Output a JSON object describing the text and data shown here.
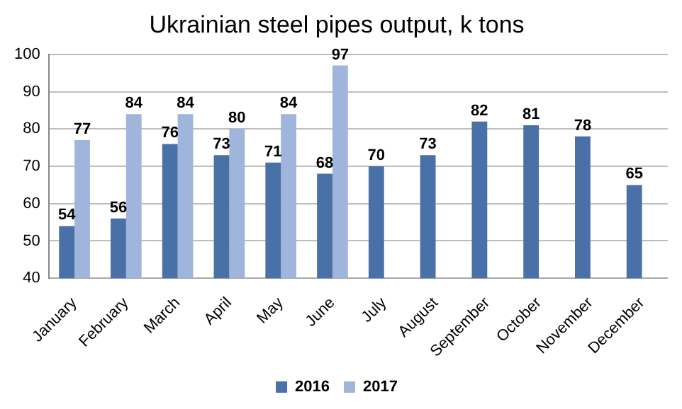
{
  "chart_data": {
    "type": "bar",
    "title": "Ukrainian steel pipes output, k tons",
    "categories": [
      "January",
      "February",
      "March",
      "April",
      "May",
      "June",
      "July",
      "August",
      "September",
      "October",
      "November",
      "December"
    ],
    "series": [
      {
        "name": "2016",
        "color": "#4a70a8",
        "values": [
          54,
          56,
          76,
          73,
          71,
          68,
          70,
          73,
          82,
          81,
          78,
          65
        ]
      },
      {
        "name": "2017",
        "color": "#9fb5db",
        "values": [
          77,
          84,
          84,
          80,
          84,
          97,
          null,
          null,
          null,
          null,
          null,
          null
        ]
      }
    ],
    "ylim": [
      40,
      100
    ],
    "yticks": [
      40,
      50,
      60,
      70,
      80,
      90,
      100
    ],
    "grid": "y",
    "legend": "bottom",
    "data_labels": true
  }
}
